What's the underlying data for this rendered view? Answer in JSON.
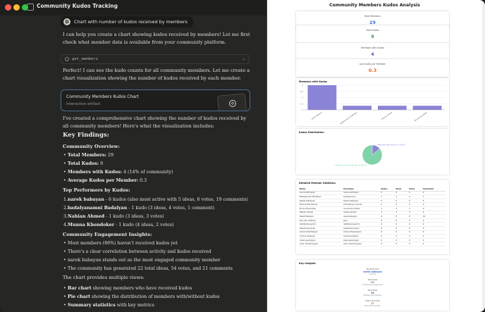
{
  "window": {
    "title": "Community Kudos Tracking",
    "title_chevron": "⌄"
  },
  "chat": {
    "user_avatar": "D",
    "user_message": "Chart with number of kudos received by members",
    "intro": "I can help you create a chart showing kudos received by members! Let me first check what member data is available from your community platform.",
    "tool_call": "get_members",
    "tool_chevron": "⌄",
    "followup": "Perfect! I can see the kudo counts for all community members. Let me create a chart visualization showing the number of kudos received by each member.",
    "artifact": {
      "title": "Community Members Kudos Chart",
      "subtitle": "Interactive artifact",
      "icon": "✣"
    },
    "summary": "I've created a comprehensive chart showing the number of kudos received by all community members! Here's what the visualization includes:",
    "key_findings_heading": "Key Findings:",
    "overview_heading": "Community Overview:",
    "overview": [
      {
        "label": "Total Members:",
        "value": " 29"
      },
      {
        "label": "Total Kudos:",
        "value": " 9"
      },
      {
        "label": "Members with Kudos:",
        "value": " 4 (14% of community)"
      },
      {
        "label": "Average Kudos per Member:",
        "value": " 0.3"
      }
    ],
    "performers_heading": "Top Performers by Kudos:",
    "performers": [
      {
        "num": "1.",
        "name": "narek babayan",
        "text": " - 6 kudos (also most active with 5 ideas, 6 votes, 19 comments)"
      },
      {
        "num": "2.",
        "name": "badalyanamni Badalyan",
        "text": " - 1 kudo (3 ideas, 4 votes, 1 comment)"
      },
      {
        "num": "3.",
        "name": "Nahian Ahmed",
        "text": " - 1 kudo (3 ideas, 3 votes)"
      },
      {
        "num": "4.",
        "name": "Munna Khondoker",
        "text": " - 1 kudo (4 ideas, 2 votes)"
      }
    ],
    "engagement_heading": "Community Engagement Insights:",
    "engagement": [
      "Most members (86%) haven't received kudos yet",
      "There's a clear correlation between activity and kudos received",
      "narek babayan stands out as the most engaged community member",
      "The community has generated 22 total ideas, 54 votes, and 21 comments"
    ],
    "views_intro": "The chart provides multiple views:",
    "views": [
      {
        "label": "Bar chart",
        "text": " showing members who have received kudos"
      },
      {
        "label": "Pie chart",
        "text": " showing the distribution of members with/without kudos"
      },
      {
        "label": "Summary statistics",
        "text": " with key metrics"
      }
    ]
  },
  "artifact_panel": {
    "title": "Community Members Kudos Analysis",
    "stats": [
      {
        "label": "Total Members",
        "value": "29",
        "color": "#3b6fd6"
      },
      {
        "label": "Total Kudos",
        "value": "9",
        "color": "#3b8f3b"
      },
      {
        "label": "Members with Kudos",
        "value": "4",
        "color": "#7b3fc4"
      },
      {
        "label": "Avg Kudos per Member",
        "value": "0.3",
        "color": "#e06a1a"
      }
    ],
    "bar_card_title": "Members with Kudos",
    "pie_card_title": "Kudos Distribution",
    "table_title": "Detailed Member Statistics",
    "table_headers": [
      "Name",
      "Username",
      "Kudos",
      "Ideas",
      "Votes",
      "Comments"
    ],
    "table_rows": [
      [
        "Lusine Petrosyan",
        "lusine.petrosyan",
        "0",
        "0",
        "0",
        "0"
      ],
      [
        "Badalyananni Badalyan",
        "badalyananni",
        "1",
        "3",
        "4",
        "1"
      ],
      [
        "Hakob Hakobyan",
        "hakob.hakobyan",
        "0",
        "0",
        "0",
        "0"
      ],
      [
        "Menua Khachatryan",
        "khachatryan.menua",
        "0",
        "0",
        "2",
        "0"
      ],
      [
        "Munna Khondoker",
        "munna.khondoker",
        "1",
        "4",
        "2",
        "0"
      ],
      [
        "Nahian Ahmed",
        "nahian.ahmed",
        "1",
        "3",
        "3",
        "0"
      ],
      [
        "Narek Babayan",
        "narek.babayan",
        "6",
        "5",
        "6",
        "19"
      ],
      [
        "Paul Van Cotthem",
        "paul",
        "0",
        "0",
        "0",
        "0"
      ],
      [
        "Dwittsuhaneedom",
        "dwittsuhaneedom",
        "0",
        "0",
        "0",
        "0"
      ],
      [
        "Yasaminanyaram",
        "yasaminanyaram",
        "0",
        "0",
        "0",
        "0"
      ],
      [
        "Armen Khachatryan",
        "armen.khachatryan",
        "0",
        "0",
        "0",
        "0"
      ],
      [
        "Armine Sargsyan",
        "armine.sargsyan",
        "0",
        "0",
        "0",
        "0"
      ],
      [
        "Arsen Gevorgyan",
        "arsen.gevorgyan",
        "0",
        "0",
        "0",
        "0"
      ],
      [
        "Aram Hovhannisyan",
        "aram.hovhannisyan",
        "0",
        "0",
        "0",
        "0"
      ]
    ],
    "insights_title": "Key Insights",
    "insights": [
      {
        "label": "Top Performer",
        "value": "narek babayan",
        "sub": "6 kudos"
      },
      {
        "label": "Total Ideas",
        "value": "22",
        "sub": "Community engagement"
      },
      {
        "label": "Total Votes",
        "value": "54",
        "sub": "Member participation"
      },
      {
        "label": "Total Comments",
        "value": "21",
        "sub": "Discussion activity"
      }
    ]
  },
  "chart_data": [
    {
      "type": "bar",
      "title": "Members with Kudos",
      "categories": [
        "narek babayan",
        "badalyanamni Badalyan",
        "Nahian Ahmed",
        "Munna Khondoker"
      ],
      "values": [
        6,
        1,
        1,
        1
      ],
      "ylim": [
        0,
        6
      ],
      "color": "#8b84d6"
    },
    {
      "type": "pie",
      "title": "Kudos Distribution",
      "labels": [
        "Members with Kudos: 4 (14%)",
        "Members without Kudos: 25 (86%)"
      ],
      "values": [
        4,
        25
      ],
      "colors": [
        "#8b84d6",
        "#7fd3a8"
      ]
    }
  ]
}
